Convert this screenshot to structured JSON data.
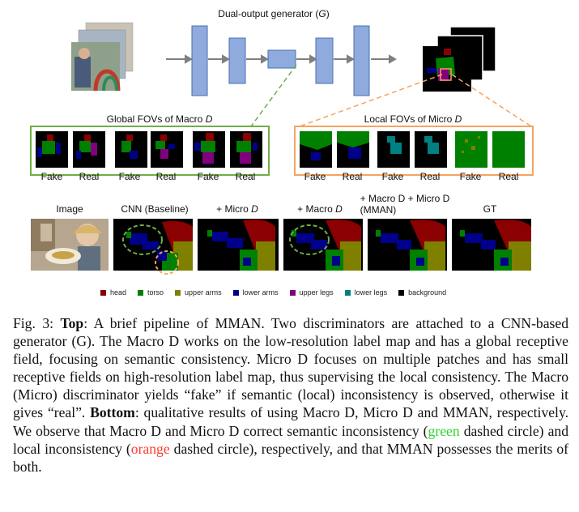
{
  "top": {
    "generator_label_prefix": "Dual-output generator (",
    "generator_label_var": "G",
    "generator_label_suffix": ")",
    "global_fov_prefix": "Global FOVs of Macro ",
    "global_fov_var": "D",
    "local_fov_prefix": "Local FOVs of Micro ",
    "local_fov_var": "D",
    "global_pairs": [
      "Fake",
      "Real",
      "Fake",
      "Real",
      "Fake",
      "Real"
    ],
    "local_pairs": [
      "Fake",
      "Real",
      "Fake",
      "Real",
      "Fake",
      "Real"
    ]
  },
  "bottom": {
    "columns": [
      {
        "prefix": "Image",
        "var": "",
        "line2": ""
      },
      {
        "prefix": "CNN (Baseline)",
        "var": "",
        "line2": ""
      },
      {
        "prefix": "+ Micro ",
        "var": "D",
        "line2": ""
      },
      {
        "prefix": "+ Macro ",
        "var": "D",
        "line2": ""
      },
      {
        "prefix": "+ Macro D + Micro D",
        "var": "",
        "line2": "(MMAN)"
      },
      {
        "prefix": "GT",
        "var": "",
        "line2": ""
      }
    ]
  },
  "legend": [
    {
      "label": "head",
      "color": "#8b0000"
    },
    {
      "label": "torso",
      "color": "#008000"
    },
    {
      "label": "upper arms",
      "color": "#808000"
    },
    {
      "label": "lower arms",
      "color": "#00008b"
    },
    {
      "label": "upper legs",
      "color": "#800080"
    },
    {
      "label": "lower legs",
      "color": "#008080"
    },
    {
      "label": "background",
      "color": "#000000"
    }
  ],
  "colors": {
    "generator_block": "#8faadc",
    "global_box": "#70ad47",
    "local_box": "#f4a460",
    "head": "#8b0000",
    "torso": "#008000",
    "upper_arms": "#808000",
    "lower_arms": "#00008b",
    "upper_legs": "#800080",
    "lower_legs": "#008080"
  },
  "caption": {
    "fig_label": "Fig. 3: ",
    "top_bold": "Top",
    "top_text": ": A brief pipeline of MMAN. Two discriminators are attached to a CNN-based generator (G). The Macro D works on the low-resolution label map and has a global receptive field, focusing on semantic consistency. Micro D focuses on multiple patches and has small receptive fields on high-resolution label map, thus supervising the local consistency. The Macro (Micro) discriminator yields “fake” if semantic (local) inconsistency is observed, otherwise it gives “real”.",
    "bottom_bold": "Bottom",
    "bottom_text_1": ": qualitative results of using Macro D, Micro D and MMAN, respectively. We observe that Macro D and Micro D correct semantic inconsistency (",
    "green_word": "green",
    "bottom_text_2": " dashed circle) and local inconsistency (",
    "orange_word": "orange",
    "bottom_text_3": " dashed circle), respectively, and that MMAN possesses the merits of both."
  }
}
